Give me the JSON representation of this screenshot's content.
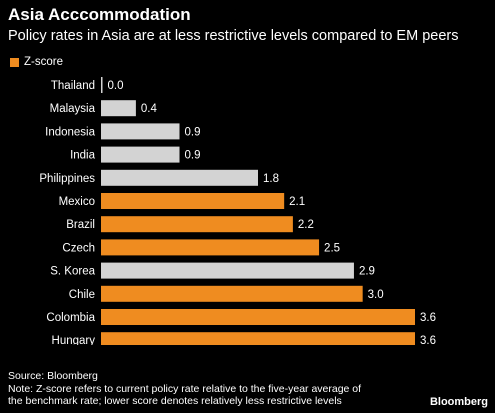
{
  "title": "Asia Acccommodation",
  "subtitle": "Policy rates in Asia are at less restrictive levels compared to EM peers",
  "legend": {
    "label": "Z-score",
    "color": "#ef8c20"
  },
  "colors": {
    "highlight": "#ef8c20",
    "asia": "#d3d3d3",
    "background": "#000000",
    "text": "#ffffff"
  },
  "chart_data": {
    "type": "bar",
    "orientation": "horizontal",
    "categories": [
      "Thailand",
      "Malaysia",
      "Indonesia",
      "India",
      "Philippines",
      "Mexico",
      "Brazil",
      "Czech",
      "S. Korea",
      "Chile",
      "Colombia",
      "Hungary"
    ],
    "values": [
      0.0,
      0.4,
      0.9,
      0.9,
      1.8,
      2.1,
      2.2,
      2.5,
      2.9,
      3.0,
      3.6,
      3.6
    ],
    "labels": [
      "0.0",
      "0.4",
      "0.9",
      "0.9",
      "1.8",
      "2.1",
      "2.2",
      "2.5",
      "2.9",
      "3.0",
      "3.6",
      "3.6"
    ],
    "bar_group": [
      "asia",
      "asia",
      "asia",
      "asia",
      "asia",
      "em",
      "em",
      "em",
      "asia",
      "em",
      "em",
      "em"
    ],
    "series": [
      {
        "name": "Z-score",
        "values": [
          0.0,
          0.4,
          0.9,
          0.9,
          1.8,
          2.1,
          2.2,
          2.5,
          2.9,
          3.0,
          3.6,
          3.6
        ]
      }
    ],
    "title": "Asia Acccommodation",
    "subtitle": "Policy rates in Asia are at less restrictive levels compared to EM peers",
    "xlim": [
      0,
      3.6
    ],
    "grid": false,
    "legend_position": "top-left"
  },
  "source": "Source: Bloomberg",
  "note": [
    "Note: Z-score refers to current policy rate relative to the five-year average of",
    "the benchmark rate; lower score denotes relatively less restrictive levels"
  ],
  "brand": "Bloomberg"
}
